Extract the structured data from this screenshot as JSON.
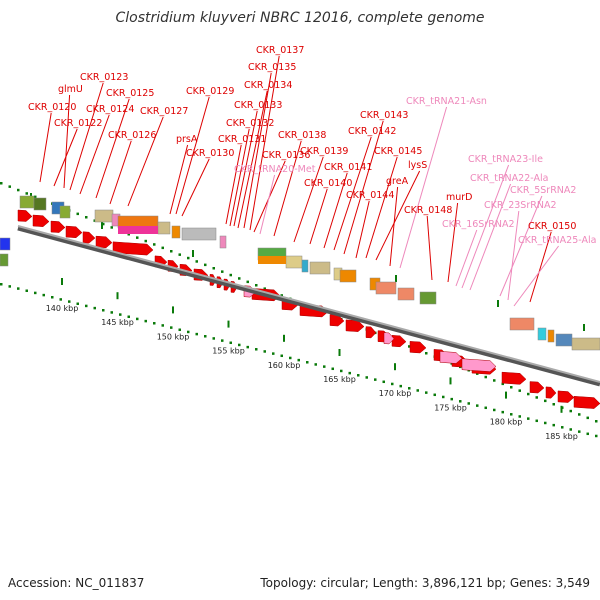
{
  "title": "Clostridium kluyveri NBRC 12016, complete genome",
  "footer": {
    "accession": "Accession: NC_011837",
    "summary": "Topology: circular; Length: 3,896,121 bp; Genes: 3,549"
  },
  "colors": {
    "gene_label": "#dd0000",
    "rna_label": "#ee88bb",
    "cds_arrow": "#ee0000",
    "rna_arrow": "#ff99cc",
    "backbone": "#888888",
    "tick": "#0a7a0a"
  },
  "scale": {
    "unit": "kbp",
    "ticks": [
      {
        "value": 140,
        "label": "140 kbp"
      },
      {
        "value": 145,
        "label": "145 kbp"
      },
      {
        "value": 150,
        "label": "150 kbp"
      },
      {
        "value": 155,
        "label": "155 kbp"
      },
      {
        "value": 160,
        "label": "160 kbp"
      },
      {
        "value": 165,
        "label": "165 kbp"
      },
      {
        "value": 170,
        "label": "170 kbp"
      },
      {
        "value": 175,
        "label": "175 kbp"
      },
      {
        "value": 180,
        "label": "180 kbp"
      },
      {
        "value": 185,
        "label": "185 kbp"
      }
    ]
  },
  "gene_labels": [
    {
      "text": "CKR_0120",
      "type": "gene"
    },
    {
      "text": "CKR_0122",
      "type": "gene"
    },
    {
      "text": "glmU",
      "type": "gene"
    },
    {
      "text": "CKR_0123",
      "type": "gene"
    },
    {
      "text": "CKR_0124",
      "type": "gene"
    },
    {
      "text": "CKR_0125",
      "type": "gene"
    },
    {
      "text": "CKR_0126",
      "type": "gene"
    },
    {
      "text": "CKR_0127",
      "type": "gene"
    },
    {
      "text": "prsA",
      "type": "gene"
    },
    {
      "text": "CKR_0129",
      "type": "gene"
    },
    {
      "text": "CKR_0130",
      "type": "gene"
    },
    {
      "text": "CKR_0131",
      "type": "gene"
    },
    {
      "text": "CKR_0132",
      "type": "gene"
    },
    {
      "text": "CKR_0133",
      "type": "gene"
    },
    {
      "text": "CKR_0134",
      "type": "gene"
    },
    {
      "text": "CKR_0135",
      "type": "gene"
    },
    {
      "text": "CKR_0137",
      "type": "gene"
    },
    {
      "text": "CKR_0136",
      "type": "gene"
    },
    {
      "text": "CKR_tRNA20-Met",
      "type": "rna"
    },
    {
      "text": "CKR_0138",
      "type": "gene"
    },
    {
      "text": "CKR_0139",
      "type": "gene"
    },
    {
      "text": "CKR_0140",
      "type": "gene"
    },
    {
      "text": "CKR_0141",
      "type": "gene"
    },
    {
      "text": "CKR_0142",
      "type": "gene"
    },
    {
      "text": "CKR_0143",
      "type": "gene"
    },
    {
      "text": "CKR_0144",
      "type": "gene"
    },
    {
      "text": "CKR_0145",
      "type": "gene"
    },
    {
      "text": "lysS",
      "type": "gene"
    },
    {
      "text": "greA",
      "type": "gene"
    },
    {
      "text": "CKR_tRNA21-Asn",
      "type": "rna"
    },
    {
      "text": "CKR_0148",
      "type": "gene"
    },
    {
      "text": "murD",
      "type": "gene"
    },
    {
      "text": "CKR_16SrRNA2",
      "type": "rna"
    },
    {
      "text": "CKR_tRNA23-Ile",
      "type": "rna"
    },
    {
      "text": "CKR_tRNA22-Ala",
      "type": "rna"
    },
    {
      "text": "CKR_5SrRNA2",
      "type": "rna"
    },
    {
      "text": "CKR_23SrRNA2",
      "type": "rna"
    },
    {
      "text": "CKR_0150",
      "type": "gene"
    },
    {
      "text": "CKR_tRNA25-Ala",
      "type": "rna"
    }
  ]
}
